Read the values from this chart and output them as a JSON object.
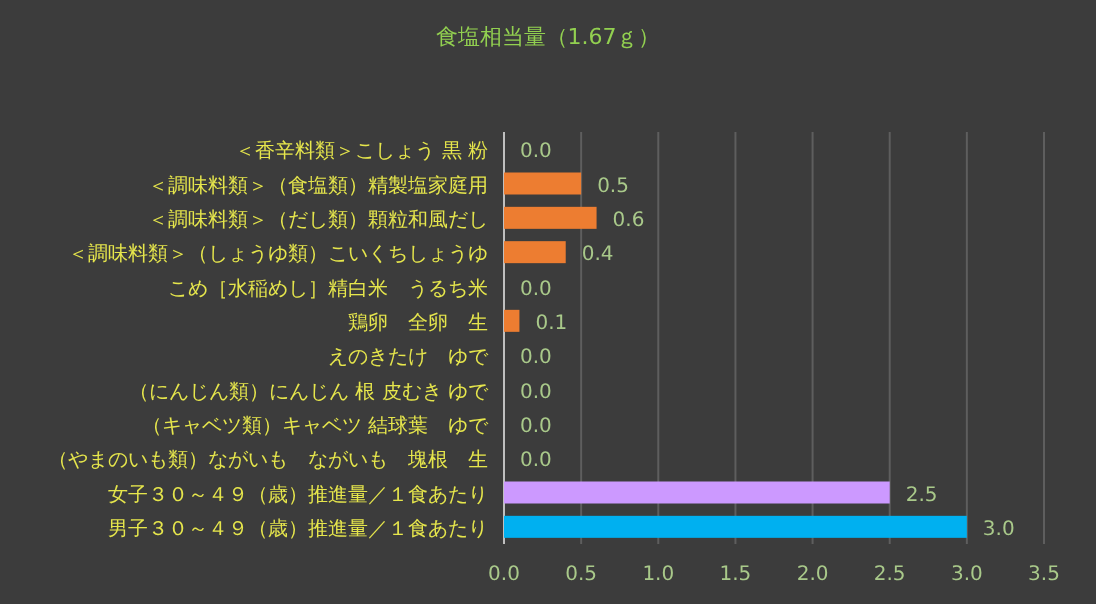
{
  "chart_data": {
    "type": "bar",
    "orientation": "horizontal",
    "title": "食塩相当量（1.67ｇ）",
    "categories": [
      "＜香辛料類＞こしょう 黒 粉",
      "＜調味料類＞（食塩類）精製塩家庭用",
      "＜調味料類＞（だし類）顆粒和風だし",
      "＜調味料類＞（しょうゆ類）こいくちしょうゆ",
      "こめ［水稲めし］精白米　うるち米",
      "鶏卵　全卵　生",
      "えのきたけ　ゆで",
      "（にんじん類）にんじん 根 皮むき ゆで",
      "（キャベツ類）キャベツ 結球葉　ゆで",
      "（やまのいも類）ながいも　ながいも　塊根　生",
      "女子３０～４９（歳）推進量／１食あたり",
      "男子３０～４９（歳）推進量／１食あたり"
    ],
    "values": [
      0,
      0.5,
      0.6,
      0.4,
      0,
      0.1,
      0,
      0,
      0,
      0,
      2.5,
      3.0
    ],
    "colors": [
      "#ed7d31",
      "#ed7d31",
      "#ed7d31",
      "#ed7d31",
      "#ed7d31",
      "#ed7d31",
      "#ed7d31",
      "#ed7d31",
      "#ed7d31",
      "#ed7d31",
      "#cc99ff",
      "#00b0f0"
    ],
    "value_labels": [
      "0.0",
      "0.5",
      "0.6",
      "0.4",
      "0.0",
      "0.1",
      "0.0",
      "0.0",
      "0.0",
      "0.0",
      "2.5",
      "3.0"
    ],
    "xlim": [
      0,
      3.5
    ],
    "xticks": [
      {
        "value": 0,
        "label": "0.0"
      },
      {
        "value": 0.5,
        "label": "0.5"
      },
      {
        "value": 1,
        "label": "1.0"
      },
      {
        "value": 1.5,
        "label": "1.5"
      },
      {
        "value": 2,
        "label": "2.0"
      },
      {
        "value": 2.5,
        "label": "2.5"
      },
      {
        "value": 3,
        "label": "3.0"
      },
      {
        "value": 3.5,
        "label": "3.5"
      }
    ],
    "grid": "x"
  }
}
